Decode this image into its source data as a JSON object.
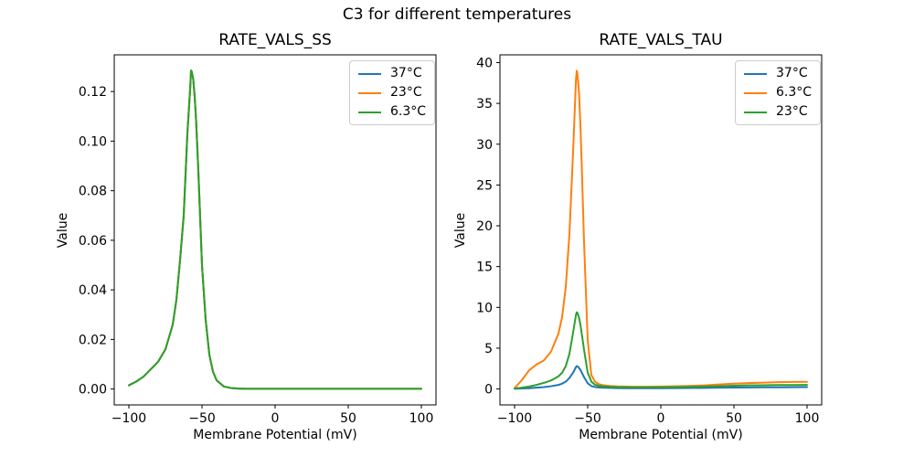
{
  "figure": {
    "title": "C3 for different temperatures"
  },
  "palette": {
    "blue": "#1f77b4",
    "orange": "#ff7f0e",
    "green": "#2ca02c",
    "axis": "#000000",
    "legend_border": "#cccccc"
  },
  "chart_data": [
    {
      "type": "line",
      "title": "RATE_VALS_SS",
      "xlabel": "Membrane Potential (mV)",
      "ylabel": "Value",
      "xlim": [
        -110,
        110
      ],
      "ylim": [
        -0.0064,
        0.1348
      ],
      "xticks": [
        -100,
        -50,
        0,
        50,
        100
      ],
      "yticks": [
        0,
        0.02,
        0.04,
        0.06,
        0.08,
        0.1,
        0.12
      ],
      "xtick_decimals": 0,
      "ytick_decimals": 2,
      "grid": false,
      "legend_position": "upper right",
      "x": [
        -100,
        -95,
        -90,
        -85,
        -80,
        -75,
        -70,
        -67.5,
        -65,
        -62.5,
        -60,
        -58,
        -57.5,
        -57,
        -56,
        -55,
        -54,
        -52.5,
        -50,
        -47.5,
        -45,
        -42.5,
        -40,
        -35,
        -30,
        -25,
        -20,
        -10,
        0,
        10,
        20,
        30,
        40,
        50,
        60,
        70,
        80,
        90,
        100
      ],
      "series": [
        {
          "name": "37°C",
          "color": "#1f77b4",
          "values": [
            0.0015,
            0.003,
            0.005,
            0.008,
            0.011,
            0.016,
            0.026,
            0.036,
            0.052,
            0.07,
            0.103,
            0.122,
            0.1285,
            0.128,
            0.125,
            0.118,
            0.108,
            0.088,
            0.05,
            0.028,
            0.014,
            0.007,
            0.0035,
            0.001,
            0.0004,
            0.0002,
            0.0001,
            0.0001,
            0.0001,
            0.0001,
            0.0001,
            0.0001,
            0.0001,
            0.0001,
            0.0001,
            0.0001,
            0.0001,
            0.0001,
            0.0001
          ]
        },
        {
          "name": "23°C",
          "color": "#ff7f0e",
          "values": [
            0.0015,
            0.003,
            0.005,
            0.008,
            0.011,
            0.016,
            0.026,
            0.036,
            0.052,
            0.07,
            0.103,
            0.122,
            0.1285,
            0.128,
            0.125,
            0.118,
            0.108,
            0.088,
            0.05,
            0.028,
            0.014,
            0.007,
            0.0035,
            0.001,
            0.0004,
            0.0002,
            0.0001,
            0.0001,
            0.0001,
            0.0001,
            0.0001,
            0.0001,
            0.0001,
            0.0001,
            0.0001,
            0.0001,
            0.0001,
            0.0001,
            0.0001
          ]
        },
        {
          "name": "6.3°C",
          "color": "#2ca02c",
          "values": [
            0.0015,
            0.003,
            0.005,
            0.008,
            0.011,
            0.016,
            0.026,
            0.036,
            0.052,
            0.07,
            0.103,
            0.122,
            0.1285,
            0.128,
            0.125,
            0.118,
            0.108,
            0.088,
            0.05,
            0.028,
            0.014,
            0.007,
            0.0035,
            0.001,
            0.0004,
            0.0002,
            0.0001,
            0.0001,
            0.0001,
            0.0001,
            0.0001,
            0.0001,
            0.0001,
            0.0001,
            0.0001,
            0.0001,
            0.0001,
            0.0001,
            0.0001
          ]
        }
      ]
    },
    {
      "type": "line",
      "title": "RATE_VALS_TAU",
      "xlabel": "Membrane Potential (mV)",
      "ylabel": "Value",
      "xlim": [
        -110,
        110
      ],
      "ylim": [
        -1.95,
        40.95
      ],
      "xticks": [
        -100,
        -50,
        0,
        50,
        100
      ],
      "yticks": [
        0,
        5,
        10,
        15,
        20,
        25,
        30,
        35,
        40
      ],
      "xtick_decimals": 0,
      "ytick_decimals": 0,
      "grid": false,
      "legend_position": "upper right",
      "x": [
        -100,
        -95,
        -90,
        -85,
        -80,
        -75,
        -70,
        -67.5,
        -65,
        -62.5,
        -60,
        -58,
        -57.5,
        -57,
        -56,
        -55,
        -54,
        -52.5,
        -50,
        -47.5,
        -45,
        -42.5,
        -40,
        -35,
        -30,
        -25,
        -20,
        -10,
        0,
        10,
        20,
        30,
        40,
        50,
        60,
        70,
        80,
        90,
        100
      ],
      "series": [
        {
          "name": "37°C",
          "color": "#1f77b4",
          "values": [
            0.03,
            0.06,
            0.1,
            0.16,
            0.24,
            0.34,
            0.5,
            0.65,
            0.9,
            1.35,
            2.0,
            2.7,
            2.8,
            2.78,
            2.6,
            2.35,
            2.0,
            1.45,
            0.7,
            0.36,
            0.24,
            0.19,
            0.16,
            0.13,
            0.11,
            0.1,
            0.1,
            0.1,
            0.1,
            0.11,
            0.12,
            0.14,
            0.16,
            0.18,
            0.19,
            0.2,
            0.21,
            0.22,
            0.23
          ]
        },
        {
          "name": "6.3°C",
          "color": "#ff7f0e",
          "values": [
            0.1,
            1.1,
            2.3,
            3.0,
            3.5,
            4.6,
            6.8,
            8.8,
            12.5,
            19,
            29,
            38,
            39,
            38.6,
            36.5,
            32.5,
            27,
            18,
            6.0,
            1.7,
            0.9,
            0.6,
            0.48,
            0.38,
            0.32,
            0.3,
            0.28,
            0.28,
            0.3,
            0.33,
            0.38,
            0.45,
            0.55,
            0.65,
            0.72,
            0.78,
            0.83,
            0.86,
            0.88
          ]
        },
        {
          "name": "23°C",
          "color": "#2ca02c",
          "values": [
            0.06,
            0.16,
            0.3,
            0.5,
            0.75,
            1.05,
            1.55,
            2.0,
            2.8,
            4.3,
            6.9,
            9.1,
            9.4,
            9.3,
            8.8,
            7.9,
            6.7,
            4.8,
            2.0,
            0.9,
            0.52,
            0.4,
            0.33,
            0.27,
            0.23,
            0.21,
            0.2,
            0.2,
            0.21,
            0.23,
            0.26,
            0.3,
            0.35,
            0.4,
            0.44,
            0.46,
            0.48,
            0.49,
            0.5
          ]
        }
      ]
    }
  ]
}
